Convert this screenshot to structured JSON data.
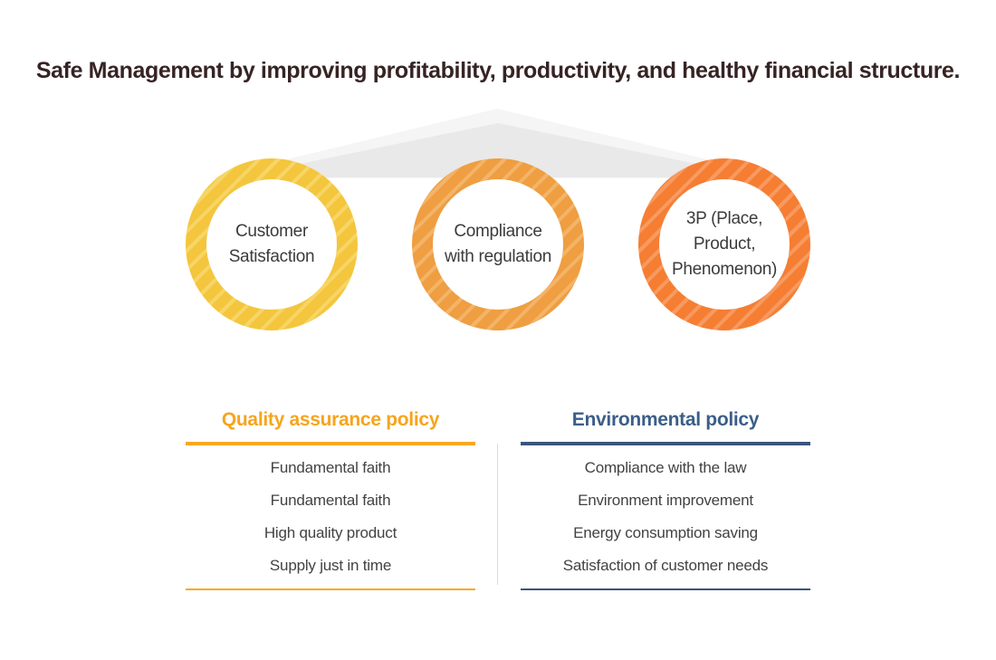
{
  "title": "Safe Management by improving profitability, productivity, and healthy financial structure.",
  "circles": [
    {
      "name": "customer-satisfaction",
      "lines": [
        "Customer",
        "Satisfaction"
      ],
      "ring_color": "#F4C63E",
      "stripe_color": "#F7D566"
    },
    {
      "name": "compliance-with-regulation",
      "lines": [
        "Compliance",
        "with regulation"
      ],
      "ring_color": "#EF9E41",
      "stripe_color": "#F3B468"
    },
    {
      "name": "three-p",
      "lines": [
        "3P (Place,",
        "Product,",
        "Phenomenon)"
      ],
      "ring_color": "#F57E33",
      "stripe_color": "#F89A60"
    }
  ],
  "policies": [
    {
      "title": "Quality assurance policy",
      "accent_color": "#F7A41C",
      "items": [
        "Fundamental faith",
        "Fundamental faith",
        "High quality product",
        "Supply just in time"
      ]
    },
    {
      "title": "Environmental policy",
      "accent_color": "#3C5E88",
      "items": [
        "Compliance with the law",
        "Environment improvement",
        "Energy consumption saving",
        "Satisfaction of customer needs"
      ]
    }
  ],
  "colors": {
    "title_text": "#362423",
    "roof_light": "#F5F5F5",
    "roof_dark": "#E9E9E9",
    "circle_text": "#3B3B3E",
    "item_text": "#424242",
    "divider": "#DCDCDC",
    "background": "#FFFFFF"
  }
}
